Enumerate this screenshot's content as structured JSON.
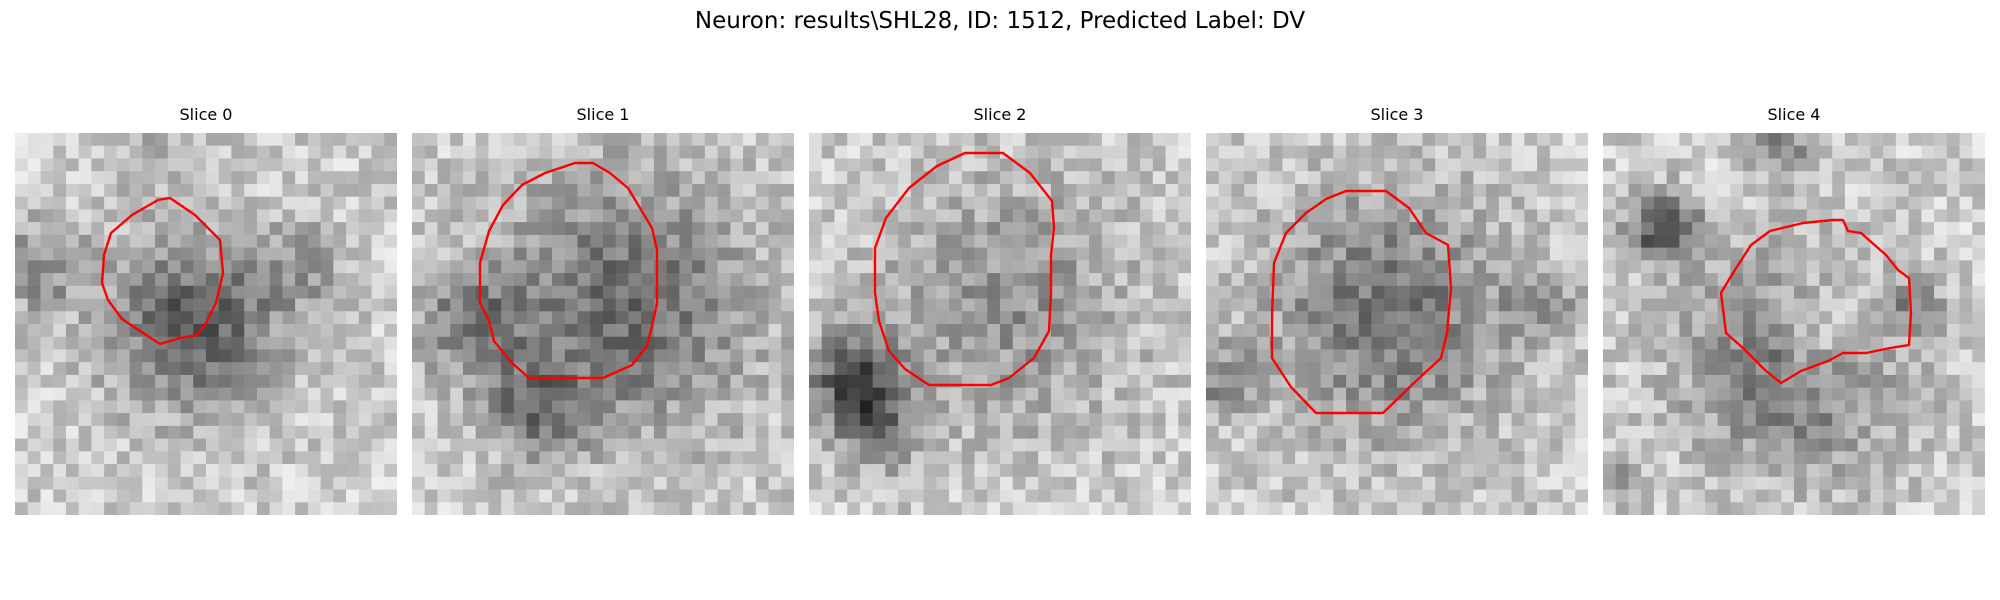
{
  "title": "Neuron: results\\SHL28, ID: 1512, Predicted Label: DV",
  "panels": [
    {
      "title": "Slice 0"
    },
    {
      "title": "Slice 1"
    },
    {
      "title": "Slice 2"
    },
    {
      "title": "Slice 3"
    },
    {
      "title": "Slice 4"
    }
  ],
  "colors": {
    "contour": "#ff0000",
    "background": "#ffffff"
  }
}
